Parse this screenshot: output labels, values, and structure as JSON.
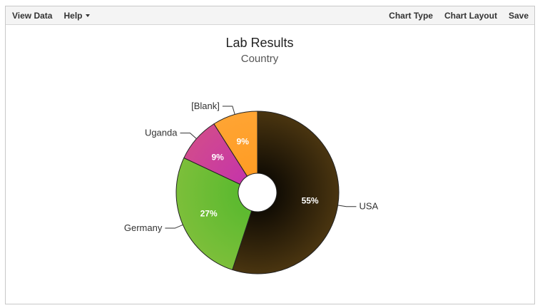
{
  "toolbar": {
    "view_data": "View Data",
    "help": "Help",
    "chart_type": "Chart Type",
    "chart_layout": "Chart Layout",
    "save": "Save"
  },
  "chart_data": {
    "type": "pie",
    "donut": true,
    "title": "Lab Results",
    "subtitle": "Country",
    "slices": [
      {
        "label": "USA",
        "value": 55,
        "value_label": "55%",
        "color": "#4a3510",
        "color_center": "#000000"
      },
      {
        "label": "Germany",
        "value": 27,
        "value_label": "27%",
        "color": "#7cbf3a",
        "color_center": "#52b82c"
      },
      {
        "label": "Uganda",
        "value": 9,
        "value_label": "9%",
        "color": "#d14a8e",
        "color_center": "#c22fb0"
      },
      {
        "label": "[Blank]",
        "value": 9,
        "value_label": "9%",
        "color": "#ffa433",
        "color_center": "#ff9a1f"
      }
    ]
  }
}
